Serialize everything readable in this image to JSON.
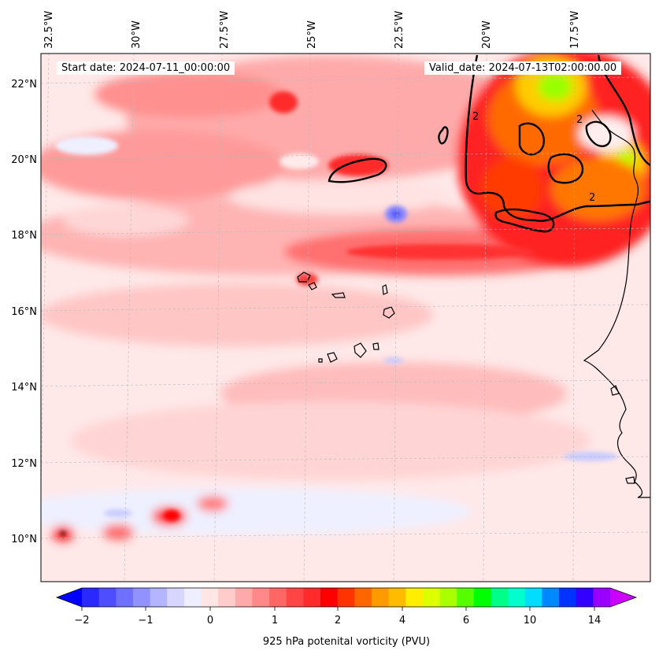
{
  "annotations": {
    "start_date": "Start date: 2024-07-11_00:00:00",
    "valid_date": "Valid_date: 2024-07-13T02:00:00.00"
  },
  "map": {
    "lon_labels": [
      "32.5°W",
      "30°W",
      "27.5°W",
      "25°W",
      "22.5°W",
      "20°W",
      "17.5°W"
    ],
    "lat_labels": [
      "22°N",
      "20°N",
      "18°N",
      "16°N",
      "14°N",
      "12°N",
      "10°N"
    ],
    "contour_label": "2",
    "colors": {
      "land_outline": "#000000",
      "thick_contour": "#000000",
      "background_low": "#ffe6e6"
    }
  },
  "colorbar": {
    "title": "925 hPa potenital vorticity (PVU)",
    "tick_labels": [
      "−2",
      "−1",
      "0",
      "1",
      "2",
      "4",
      "6",
      "10",
      "14"
    ],
    "colors": [
      "#0000ff",
      "#2828ff",
      "#4e4eff",
      "#7070ff",
      "#9292ff",
      "#b4b4ff",
      "#d6d6ff",
      "#eeeeff",
      "#ffe6e6",
      "#ffcccc",
      "#ffaaaa",
      "#ff8888",
      "#ff6666",
      "#ff4444",
      "#ff2a2a",
      "#ff0000",
      "#ff3300",
      "#ff6600",
      "#ff9900",
      "#ffbb00",
      "#ffee00",
      "#ddff00",
      "#aaff00",
      "#55ff00",
      "#00ff00",
      "#00ff88",
      "#00ffcc",
      "#00ddff",
      "#0088ff",
      "#0033ff",
      "#3300ff",
      "#9900ff",
      "#cc00ff"
    ]
  }
}
